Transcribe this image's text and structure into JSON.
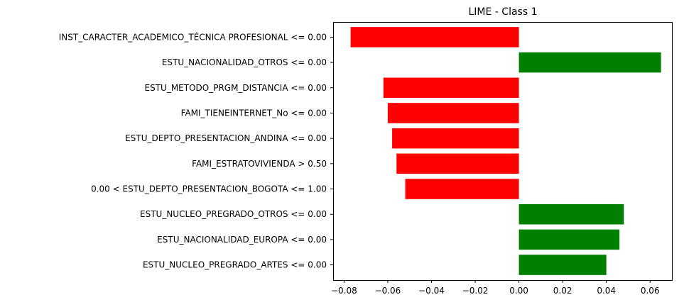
{
  "chart_data": {
    "type": "bar",
    "orientation": "horizontal",
    "title": "LIME - Class 1",
    "xlabel": "",
    "ylabel": "",
    "xlim": [
      -0.085,
      0.07
    ],
    "grid": false,
    "legend": "none",
    "x_ticks": [
      "−0.08",
      "−0.06",
      "−0.04",
      "−0.02",
      "0.00",
      "0.02",
      "0.04",
      "0.06"
    ],
    "x_tick_values": [
      -0.08,
      -0.06,
      -0.04,
      -0.02,
      0.0,
      0.02,
      0.04,
      0.06
    ],
    "colors": {
      "positive": "#008000",
      "negative": "#ff0000"
    },
    "categories": [
      "INST_CARACTER_ACADEMICO_TÉCNICA PROFESIONAL <= 0.00",
      "ESTU_NACIONALIDAD_OTROS <= 0.00",
      "ESTU_METODO_PRGM_DISTANCIA <= 0.00",
      "FAMI_TIENEINTERNET_No <= 0.00",
      "ESTU_DEPTO_PRESENTACION_ANDINA <= 0.00",
      "FAMI_ESTRATOVIVIENDA > 0.50",
      "0.00 < ESTU_DEPTO_PRESENTACION_BOGOTA <= 1.00",
      "ESTU_NUCLEO_PREGRADO_OTROS <= 0.00",
      "ESTU_NACIONALIDAD_EUROPA <= 0.00",
      "ESTU_NUCLEO_PREGRADO_ARTES <= 0.00"
    ],
    "values": [
      -0.077,
      0.065,
      -0.062,
      -0.06,
      -0.058,
      -0.056,
      -0.052,
      0.048,
      0.046,
      0.04
    ]
  }
}
